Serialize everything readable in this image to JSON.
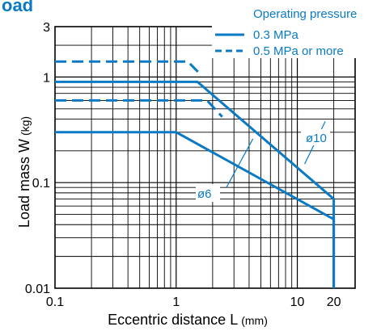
{
  "colors": {
    "series": "#0a7ac4",
    "grid": "#000000",
    "title": "#0a7ac4",
    "text": "#000000"
  },
  "chart_data": {
    "type": "line",
    "title": "oad",
    "xlabel": "Eccentric distance L",
    "xlabel_unit": "(mm)",
    "ylabel": "Load mass W",
    "ylabel_unit": "(kg)",
    "xscale": "log",
    "yscale": "log",
    "xlim": [
      0.1,
      30
    ],
    "ylim": [
      0.01,
      3
    ],
    "grid": true,
    "x_tick_labels": [
      "0.1",
      "1",
      "10",
      "20"
    ],
    "y_tick_labels": [
      "0.01",
      "0.1",
      "1",
      "3"
    ],
    "legend": {
      "placement": "top-right",
      "title": "Operating pressure",
      "entries": [
        {
          "label": "0.3 MPa",
          "style": "solid"
        },
        {
          "label": "0.5 MPa or more",
          "style": "dashed"
        }
      ]
    },
    "annotations": [
      {
        "text": "ø10"
      },
      {
        "text": "ø6"
      }
    ],
    "series": [
      {
        "bore": "ø10",
        "pressure": "0.3 MPa",
        "style": "solid",
        "x": [
          0.1,
          1.5,
          20,
          20
        ],
        "y": [
          0.9,
          0.9,
          0.07,
          0.01
        ]
      },
      {
        "bore": "ø10",
        "pressure": "0.5 MPa or more",
        "style": "dashed",
        "x": [
          0.1,
          1.25,
          1.6
        ],
        "y": [
          1.4,
          1.4,
          1.05
        ]
      },
      {
        "bore": "ø6",
        "pressure": "0.3 MPa",
        "style": "solid",
        "x": [
          0.1,
          1.0,
          20,
          20
        ],
        "y": [
          0.3,
          0.3,
          0.045,
          0.01
        ]
      },
      {
        "bore": "ø6",
        "pressure": "0.5 MPa or more",
        "style": "dashed",
        "x": [
          0.1,
          1.8,
          2.4
        ],
        "y": [
          0.6,
          0.6,
          0.42
        ]
      }
    ],
    "label_leaders": [
      {
        "label": "ø10",
        "x": [
          11.5,
          17
        ],
        "y": [
          0.15,
          0.38
        ]
      },
      {
        "label": "ø6",
        "x": [
          2.6,
          4.3
        ],
        "y": [
          0.09,
          0.26
        ]
      }
    ]
  }
}
